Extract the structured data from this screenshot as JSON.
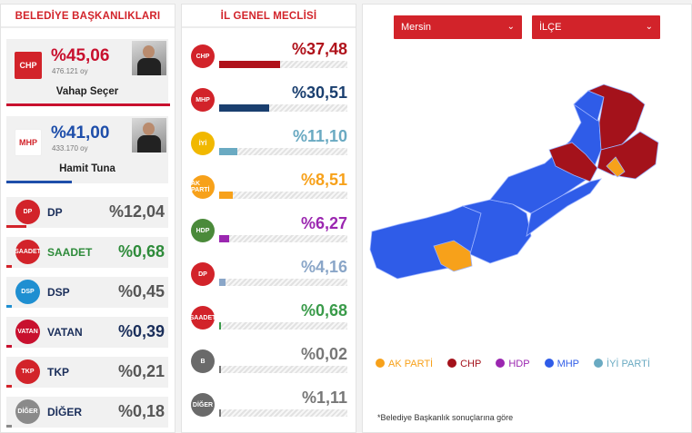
{
  "mayor": {
    "title": "BELEDİYE BAŞKANLIKLARI",
    "leaders": [
      {
        "logo": "CHP",
        "pct": "%45,06",
        "votes": "476.121 oy",
        "name": "Vahap Seçer",
        "color": "#c8102e"
      },
      {
        "logo": "MHP",
        "pct": "%41,00",
        "votes": "433.170 oy",
        "name": "Hamit Tuna",
        "color": "#1e4eaa"
      }
    ],
    "others": [
      {
        "logo": "DP",
        "name": "DP",
        "pct": "%12,04",
        "color": "#d2232a",
        "pctColor": "#555"
      },
      {
        "logo": "SAADET",
        "name": "SAADET",
        "pct": "%0,68",
        "color": "#d2232a",
        "pctColor": "#2e8b3a",
        "nameColor": "#2e8b3a"
      },
      {
        "logo": "DSP",
        "name": "DSP",
        "pct": "%0,45",
        "color": "#1f8fd1",
        "pctColor": "#555"
      },
      {
        "logo": "VATAN",
        "name": "VATAN",
        "pct": "%0,39",
        "color": "#c8102e",
        "pctColor": "#1a2e5a"
      },
      {
        "logo": "TKP",
        "name": "TKP",
        "pct": "%0,21",
        "color": "#d2232a",
        "pctColor": "#555"
      },
      {
        "logo": "DİĞER",
        "name": "DİĞER",
        "pct": "%0,18",
        "color": "#8a8a8a",
        "pctColor": "#555"
      }
    ]
  },
  "council": {
    "title": "İL GENEL MECLİSİ",
    "rows": [
      {
        "logo": "CHP",
        "pct": "%37,48",
        "value": 37.48,
        "color": "#b0121b",
        "logoColor": "#d2232a"
      },
      {
        "logo": "MHP",
        "pct": "%30,51",
        "value": 30.51,
        "color": "#1a3f6f",
        "logoColor": "#d2232a"
      },
      {
        "logo": "İYİ",
        "pct": "%11,10",
        "value": 11.1,
        "color": "#6aaac2",
        "logoColor": "#f1b800"
      },
      {
        "logo": "AK PARTİ",
        "pct": "%8,51",
        "value": 8.51,
        "color": "#f7a11a",
        "logoColor": "#f7a11a"
      },
      {
        "logo": "HDP",
        "pct": "%6,27",
        "value": 6.27,
        "color": "#9b27b0",
        "logoColor": "#4a8a3a"
      },
      {
        "logo": "DP",
        "pct": "%4,16",
        "value": 4.16,
        "color": "#8aa6c8",
        "logoColor": "#d2232a"
      },
      {
        "logo": "SAADET",
        "pct": "%0,68",
        "value": 0.68,
        "color": "#3a9b4a",
        "logoColor": "#d2232a"
      },
      {
        "logo": "B",
        "pct": "%0,02",
        "value": 0.02,
        "color": "#777777",
        "logoColor": "#6a6a6a"
      },
      {
        "logo": "DİĞER",
        "pct": "%1,11",
        "value": 1.11,
        "color": "#777777",
        "logoColor": "#6a6a6a"
      }
    ]
  },
  "map": {
    "province_select": "Mersin",
    "district_select": "İLÇE",
    "legend": [
      {
        "label": "AK PARTİ",
        "color": "#f7a11a"
      },
      {
        "label": "CHP",
        "color": "#a4121b"
      },
      {
        "label": "HDP",
        "color": "#9b27b0"
      },
      {
        "label": "MHP",
        "color": "#2f5ce8"
      },
      {
        "label": "İYİ PARTİ",
        "color": "#6aaac2"
      }
    ],
    "note": "*Belediye Başkanlık sonuçlarına göre"
  }
}
